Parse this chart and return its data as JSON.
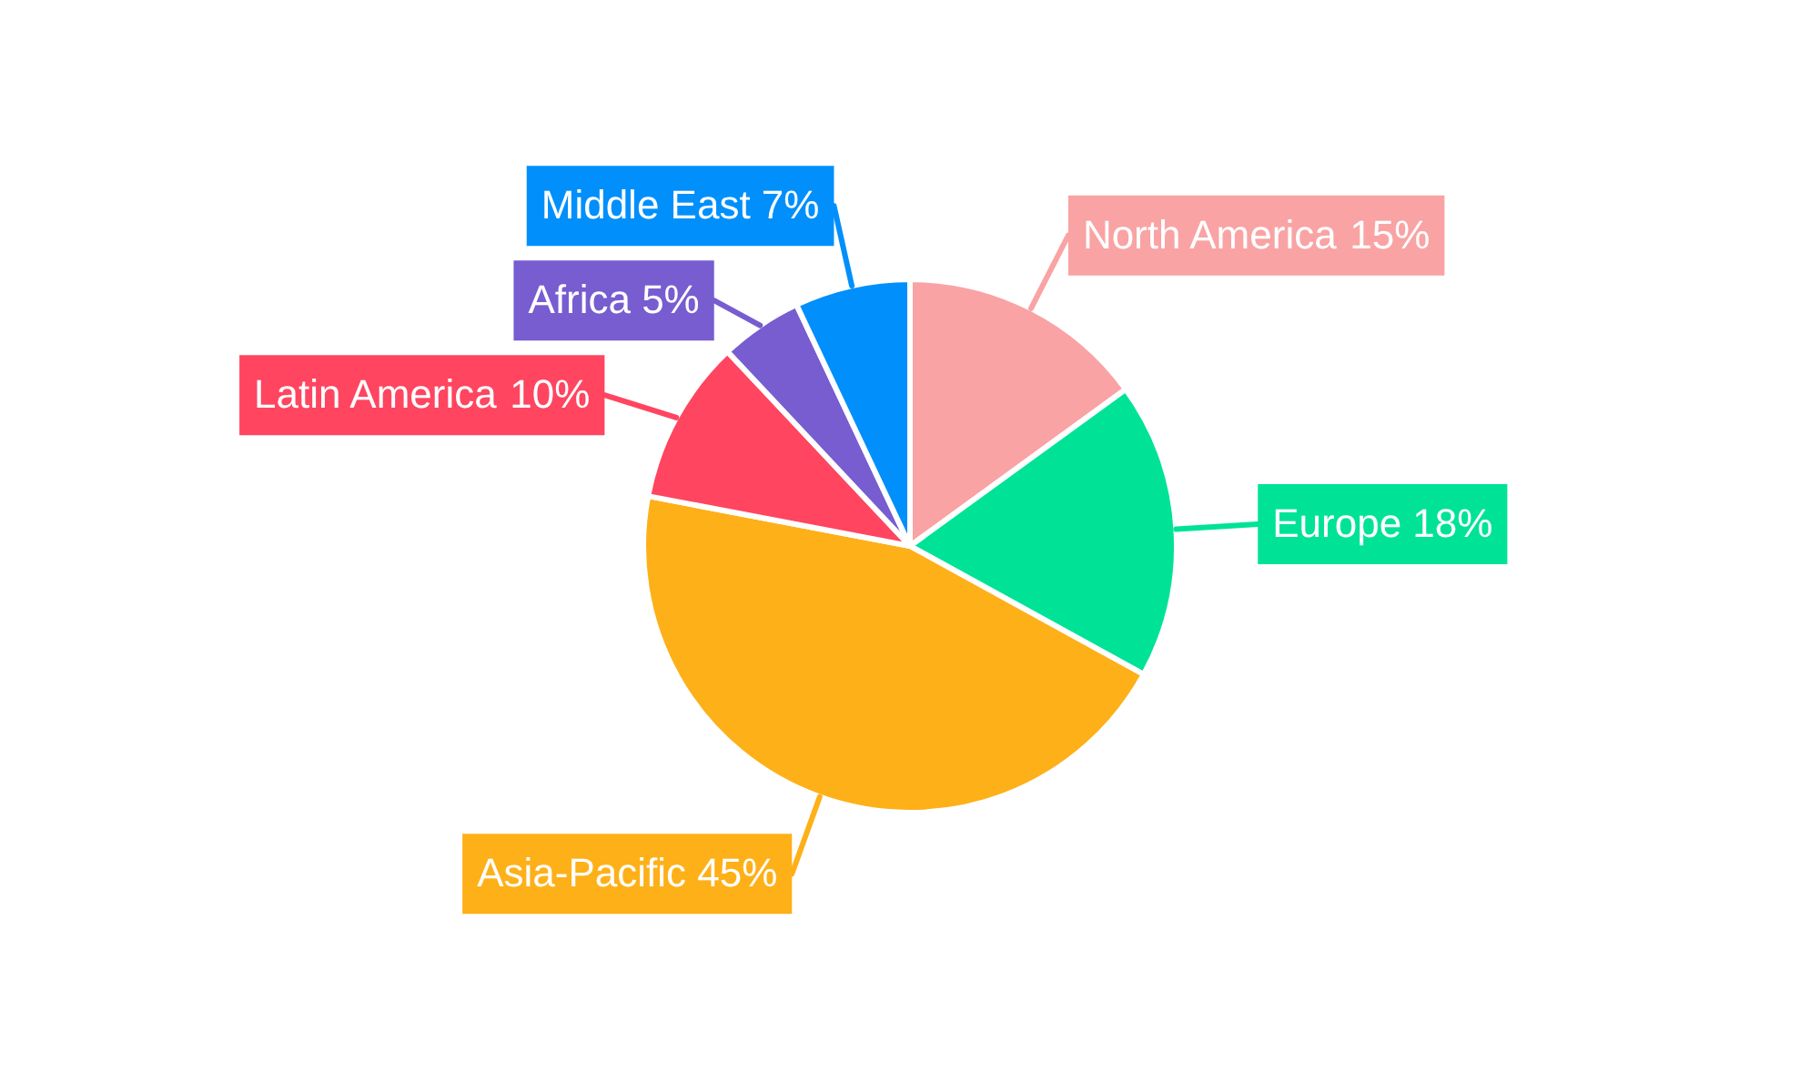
{
  "chart_data": {
    "type": "pie",
    "categories": [
      "North America",
      "Europe",
      "Asia-Pacific",
      "Latin America",
      "Africa",
      "Middle East"
    ],
    "values": [
      15,
      18,
      45,
      10,
      5,
      7
    ],
    "colors": [
      "#f9a3a4",
      "#00e396",
      "#feb019",
      "#ff4560",
      "#775dd0",
      "#008ffb"
    ],
    "value_labels": [
      "15%",
      "18%",
      "45%",
      "10%",
      "5%",
      "7%"
    ],
    "legend": false
  }
}
